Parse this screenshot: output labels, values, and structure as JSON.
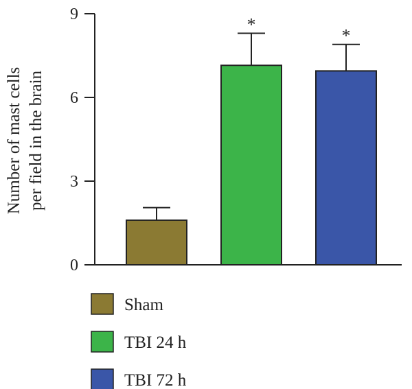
{
  "chart_data": {
    "type": "bar",
    "categories": [
      "Sham",
      "TBI 24 h",
      "TBI 72 h"
    ],
    "values": [
      1.6,
      7.15,
      6.95
    ],
    "errors": [
      0.45,
      1.15,
      0.95
    ],
    "significance": [
      "",
      "*",
      "*"
    ],
    "colors": [
      "#8b7a33",
      "#3cb449",
      "#3a56a8"
    ],
    "ylabel_lines": [
      "Number of mast cells",
      "per field in the brain"
    ],
    "ylim": [
      0,
      9
    ],
    "yticks": [
      0,
      3,
      6,
      9
    ],
    "ytick_labels": [
      "0",
      "3",
      "6",
      "9"
    ],
    "legend": {
      "placement": "bottom",
      "entries": [
        "Sham",
        "TBI 24 h",
        "TBI 72 h"
      ]
    },
    "grid": false
  }
}
